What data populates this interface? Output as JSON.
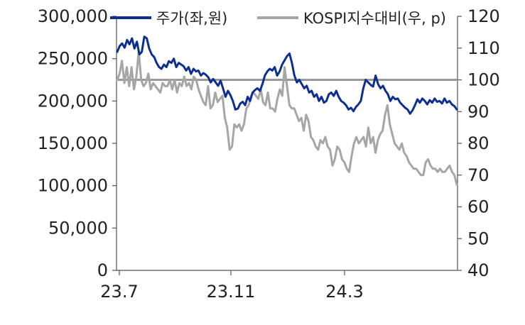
{
  "chart_data": {
    "type": "line",
    "title": "",
    "legend_placement": "top",
    "x_tick_labels": [
      "23.7",
      "23.11",
      "24.3"
    ],
    "y_left": {
      "min": 0,
      "max": 300000,
      "ticks": [
        "0",
        "50,000",
        "100,000",
        "150,000",
        "200,000",
        "250,000",
        "300,000"
      ]
    },
    "y_right": {
      "min": 40,
      "max": 120,
      "ticks": [
        "40",
        "50",
        "60",
        "70",
        "80",
        "90",
        "100",
        "110",
        "120"
      ]
    },
    "reference_line": {
      "axis": "right",
      "value": 100,
      "color": "#999999"
    },
    "series": [
      {
        "name": "주가(좌,원)",
        "axis": "left",
        "color": "#0d2f8f",
        "values": [
          258000,
          265000,
          268000,
          263000,
          272000,
          267000,
          274000,
          262000,
          270000,
          255000,
          258000,
          276000,
          274000,
          262000,
          255000,
          252000,
          245000,
          240000,
          238000,
          243000,
          240000,
          247000,
          245000,
          250000,
          240000,
          245000,
          243000,
          241000,
          236000,
          240000,
          232000,
          238000,
          235000,
          236000,
          230000,
          233000,
          231000,
          228000,
          222000,
          226000,
          222000,
          218000,
          224000,
          215000,
          205000,
          212000,
          207000,
          200000,
          190000,
          191000,
          197000,
          199000,
          195000,
          205000,
          200000,
          210000,
          213000,
          215000,
          212000,
          220000,
          230000,
          235000,
          238000,
          236000,
          240000,
          230000,
          235000,
          243000,
          248000,
          253000,
          256000,
          245000,
          230000,
          222000,
          225000,
          220000,
          215000,
          218000,
          210000,
          212000,
          205000,
          208000,
          200000,
          205000,
          198000,
          200000,
          208000,
          210000,
          206000,
          212000,
          205000,
          200000,
          198000,
          195000,
          190000,
          192000,
          188000,
          193000,
          196000,
          200000,
          215000,
          225000,
          222000,
          219000,
          217000,
          230000,
          220000,
          215000,
          218000,
          212000,
          208000,
          200000,
          205000,
          202000,
          203000,
          198000,
          195000,
          192000,
          190000,
          185000,
          189000,
          195000,
          202000,
          198000,
          203000,
          200000,
          196000,
          201000,
          198000,
          203000,
          199000,
          200000,
          197000,
          203000,
          198000,
          200000,
          196000,
          194000,
          190000
        ],
        "dates_note": ""
      },
      {
        "name": "KOSPI지수대비(우, p)",
        "axis": "right",
        "color": "#a6a6a6",
        "values": [
          100,
          102,
          106,
          99,
          104,
          98,
          104,
          97,
          101,
          109,
          100,
          98,
          99,
          102,
          97,
          99,
          98,
          97,
          96,
          99,
          98,
          98,
          100,
          97,
          100,
          96,
          99,
          98,
          101,
          98,
          99,
          97,
          101,
          100,
          97,
          95,
          93,
          92,
          98,
          91,
          92,
          96,
          93,
          94,
          95,
          88,
          85,
          78,
          79,
          86,
          85,
          86,
          84,
          86,
          91,
          92,
          95,
          96,
          95,
          94,
          97,
          93,
          92,
          96,
          91,
          91,
          90,
          94,
          97,
          95,
          104,
          98,
          92,
          91,
          91,
          89,
          87,
          88,
          84,
          89,
          87,
          82,
          81,
          79,
          78,
          81,
          80,
          82,
          79,
          78,
          73,
          75,
          79,
          78,
          75,
          74,
          72,
          71,
          76,
          80,
          82,
          80,
          81,
          82,
          79,
          85,
          80,
          82,
          77,
          81,
          83,
          84,
          89,
          92,
          86,
          83,
          80,
          79,
          78,
          80,
          77,
          76,
          74,
          73,
          72,
          72,
          71,
          70,
          70,
          74,
          75,
          73,
          72,
          72,
          71,
          72,
          71,
          71,
          72,
          73,
          71,
          70,
          67
        ]
      }
    ]
  }
}
